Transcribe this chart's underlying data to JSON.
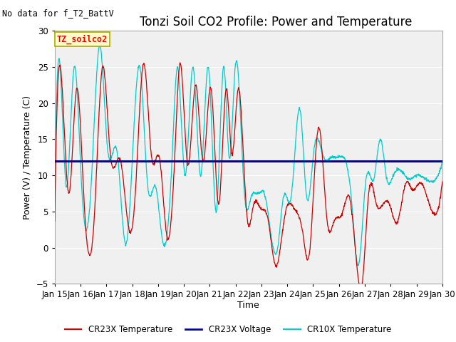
{
  "title": "Tonzi Soil CO2 Profile: Power and Temperature",
  "no_data_text": "No data for f_T2_BattV",
  "ylabel": "Power (V) / Temperature (C)",
  "xlabel": "Time",
  "ylim": [
    -5,
    30
  ],
  "yticks": [
    -5,
    0,
    5,
    10,
    15,
    20,
    25,
    30
  ],
  "xtick_labels": [
    "Jan 15",
    "Jan 16",
    "Jan 17",
    "Jan 18",
    "Jan 19",
    "Jan 20",
    "Jan 21",
    "Jan 22",
    "Jan 23",
    "Jan 24",
    "Jan 25",
    "Jan 26",
    "Jan 27",
    "Jan 28",
    "Jan 29",
    "Jan 30"
  ],
  "voltage_value": 12.0,
  "voltage_color": "#0000bb",
  "cr23x_color": "#cc0000",
  "cr10x_color": "#00cccc",
  "legend_label_cr23x": "CR23X Temperature",
  "legend_label_voltage": "CR23X Voltage",
  "legend_label_cr10x": "CR10X Temperature",
  "legend_box_text": "TZ_soilco2",
  "fig_bg_color": "#ffffff",
  "plot_bg_color": "#f0f0f0",
  "grid_color": "#ffffff",
  "title_fontsize": 12,
  "label_fontsize": 9,
  "tick_fontsize": 8.5
}
